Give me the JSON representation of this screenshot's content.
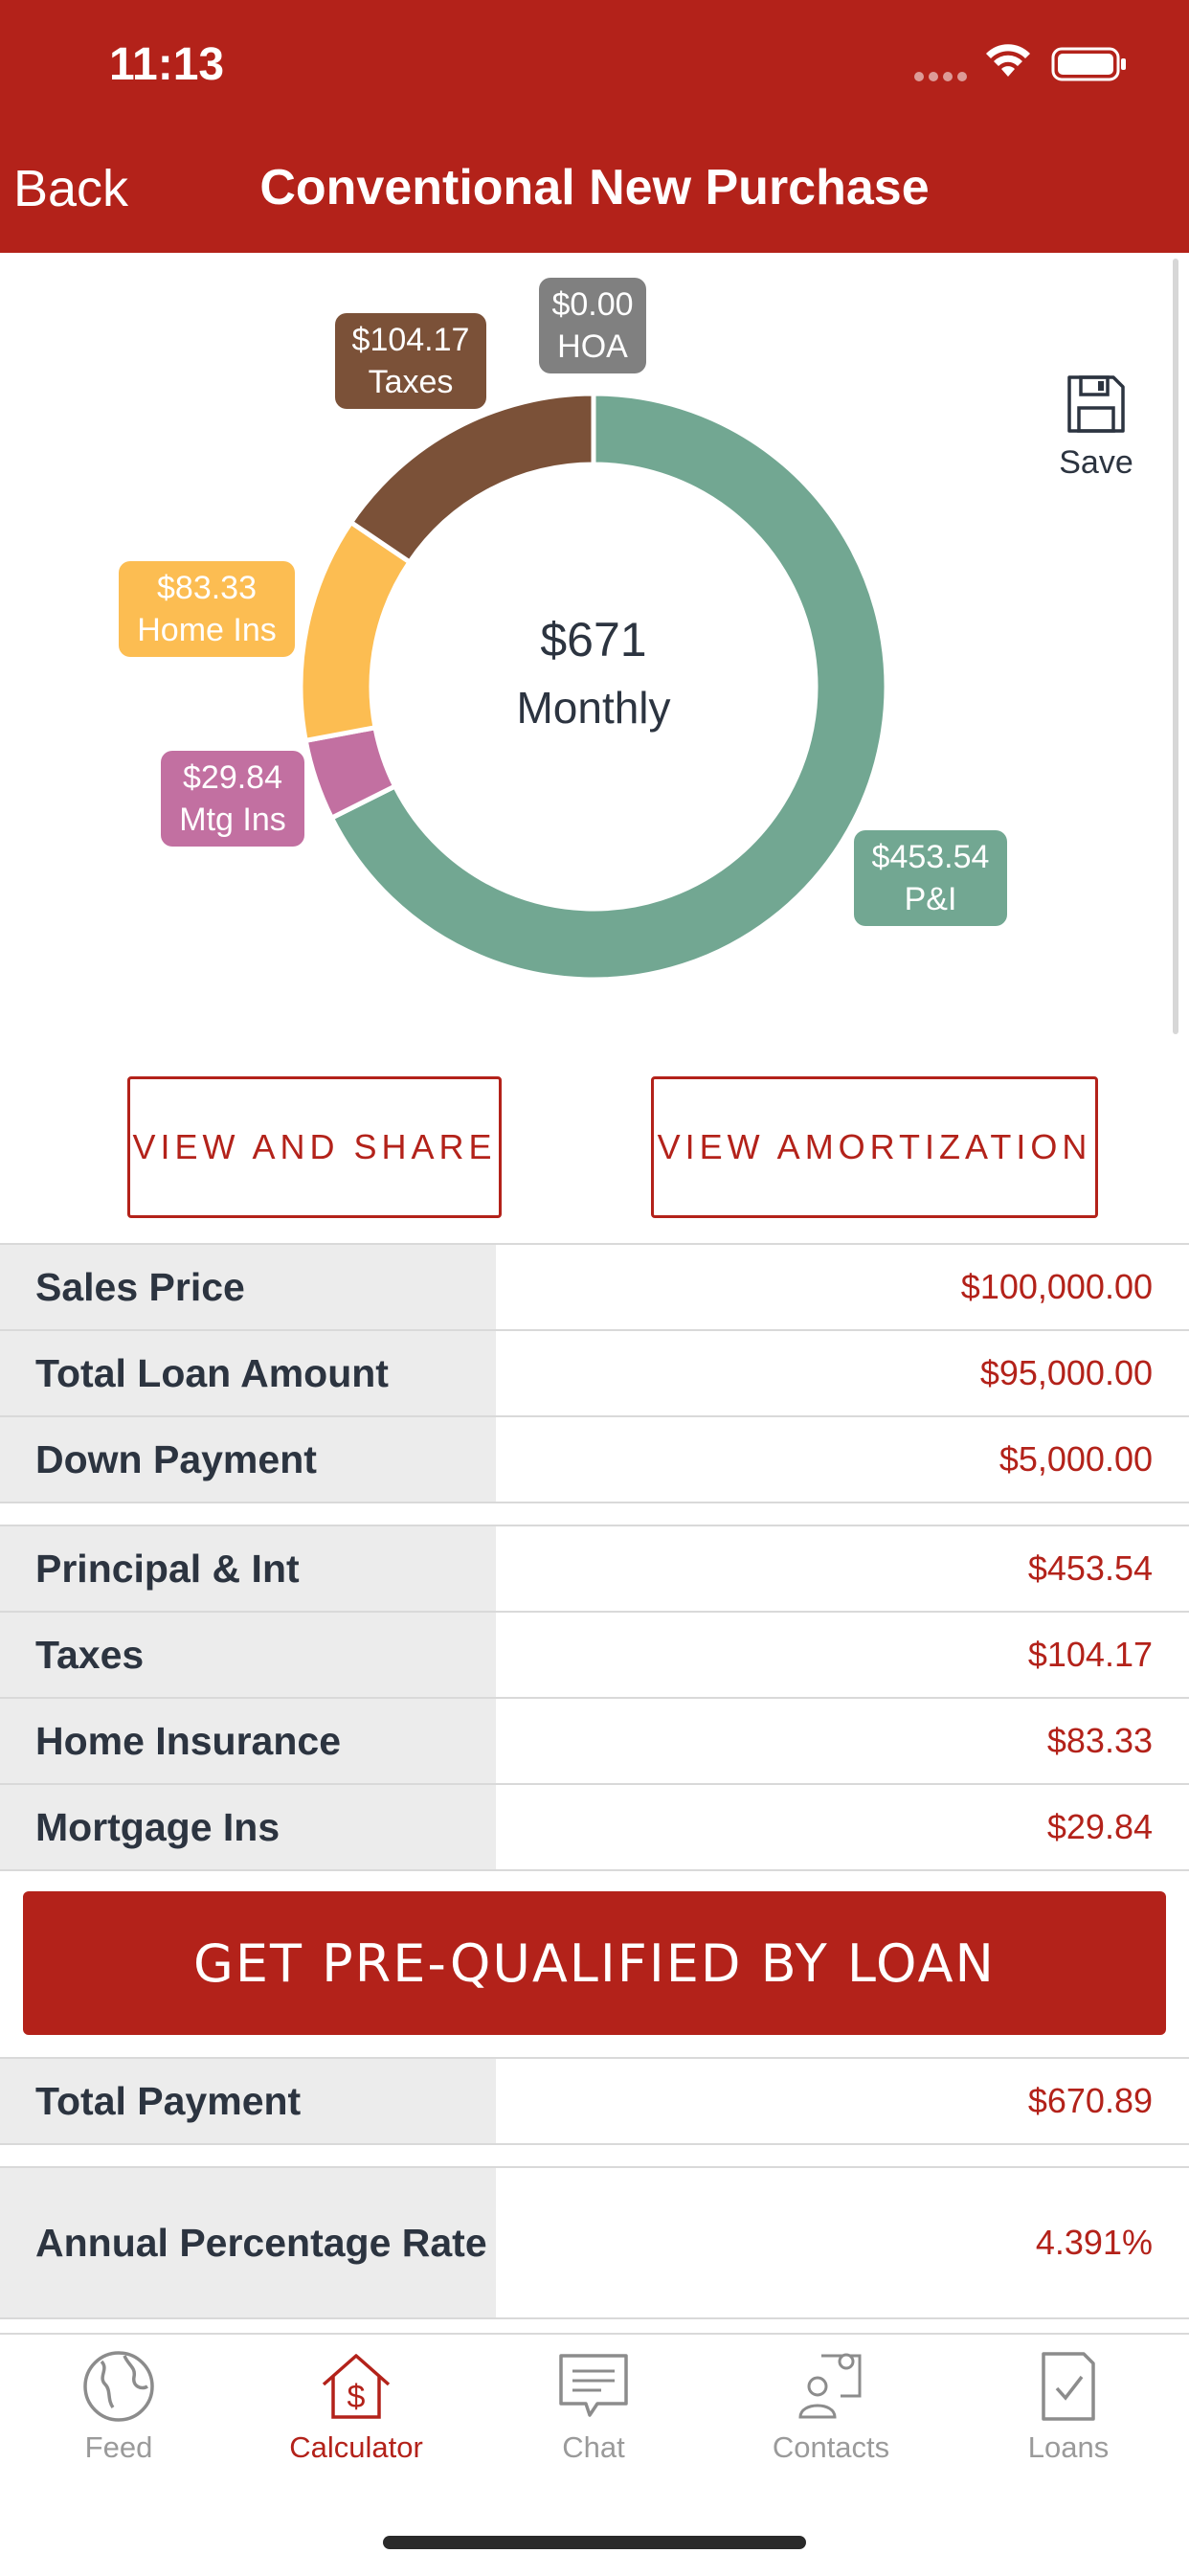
{
  "status_bar": {
    "time": "11:13"
  },
  "nav": {
    "back_label": "Back",
    "title": "Conventional New Purchase"
  },
  "chart": {
    "center_amount": "$671",
    "center_label": "Monthly",
    "segments": [
      {
        "name": "P&I",
        "amount": "$453.54",
        "value": 453.54,
        "color": "#72a792"
      },
      {
        "name": "Mtg Ins",
        "amount": "$29.84",
        "value": 29.84,
        "color": "#c270a1"
      },
      {
        "name": "Home Ins",
        "amount": "$83.33",
        "value": 83.33,
        "color": "#fcbd52"
      },
      {
        "name": "Taxes",
        "amount": "$104.17",
        "value": 104.17,
        "color": "#7b5138"
      },
      {
        "name": "HOA",
        "amount": "$0.00",
        "value": 0.0,
        "color": "#808080"
      }
    ]
  },
  "save": {
    "label": "Save"
  },
  "buttons": {
    "view_share": "VIEW AND SHARE",
    "view_amortization": "VIEW AMORTIZATION"
  },
  "loan_table": [
    {
      "label": "Sales Price",
      "value": "$100,000.00"
    },
    {
      "label": "Total Loan Amount",
      "value": "$95,000.00"
    },
    {
      "label": "Down Payment",
      "value": "$5,000.00"
    }
  ],
  "payment_table": [
    {
      "label": "Principal & Int",
      "value": "$453.54"
    },
    {
      "label": "Taxes",
      "value": "$104.17"
    },
    {
      "label": "Home Insurance",
      "value": "$83.33"
    },
    {
      "label": "Mortgage Ins",
      "value": "$29.84"
    }
  ],
  "cta": {
    "label": "GET PRE-QUALIFIED BY LOAN"
  },
  "totals": [
    {
      "label": "Total Payment",
      "value": "$670.89"
    }
  ],
  "apr": {
    "label": "Annual Percentage Rate",
    "value": "4.391%"
  },
  "tabs": [
    {
      "label": "Feed",
      "icon": "globe-icon",
      "active": false
    },
    {
      "label": "Calculator",
      "icon": "calculator-house-icon",
      "active": true
    },
    {
      "label": "Chat",
      "icon": "chat-icon",
      "active": false
    },
    {
      "label": "Contacts",
      "icon": "contacts-icon",
      "active": false
    },
    {
      "label": "Loans",
      "icon": "document-check-icon",
      "active": false
    }
  ],
  "colors": {
    "brand": "#b3221a",
    "text": "#2c3440",
    "label_bg": "#ececec"
  }
}
